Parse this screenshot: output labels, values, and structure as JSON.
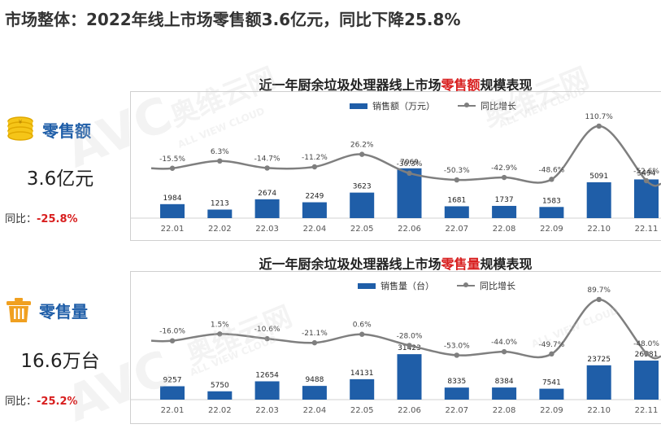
{
  "page_title": "市场整体：2022年线上市场零售额3.6亿元，同比下降25.8%",
  "kpis": [
    {
      "label": "零售额",
      "value": "3.6亿元",
      "yoy_label": "同比：",
      "yoy_value": "-25.8%",
      "icon": "coin-stack-icon"
    },
    {
      "label": "零售量",
      "value": "16.6万台",
      "yoy_label": "同比：",
      "yoy_value": "-25.2%",
      "icon": "trash-bin-icon"
    }
  ],
  "watermark": {
    "brand": "AVC",
    "cn": "奥维云网",
    "en": "ALL VIEW CLOUD"
  },
  "colors": {
    "bar": "#1f5ea8",
    "line": "#7f7f7f",
    "accent_red": "#d81e1e"
  },
  "charts": [
    {
      "title_prefix": "近一年厨余垃圾处理器线上市场",
      "title_highlight": "零售额",
      "title_suffix": "规模表现",
      "legend_bar": "销售额（万元）",
      "legend_line": "同比增长"
    },
    {
      "title_prefix": "近一年厨余垃圾处理器线上市场",
      "title_highlight": "零售量",
      "title_suffix": "规模表现",
      "legend_bar": "销售量（台）",
      "legend_line": "同比增长"
    }
  ],
  "chart_data": [
    {
      "type": "bar",
      "title": "近一年厨余垃圾处理器线上市场零售额规模表现",
      "categories": [
        "22.01",
        "22.02",
        "22.03",
        "22.04",
        "22.05",
        "22.06",
        "22.07",
        "22.08",
        "22.09",
        "22.10",
        "22.11"
      ],
      "series": [
        {
          "name": "销售额（万元）",
          "type": "bar",
          "values": [
            1984,
            1213,
            2674,
            2249,
            3623,
            7069,
            1681,
            1737,
            1583,
            5091,
            5494
          ],
          "labels": [
            "1984",
            "1213",
            "2674",
            "2249",
            "3623",
            "7069",
            "1681",
            "1737",
            "1583",
            "5091",
            "5494"
          ]
        },
        {
          "name": "同比增长",
          "type": "line",
          "values": [
            -15.5,
            6.3,
            -14.7,
            -11.2,
            26.2,
            -30.3,
            -50.3,
            -42.9,
            -48.6,
            110.7,
            -52.6
          ],
          "labels": [
            "-15.5%",
            "6.3%",
            "-14.7%",
            "-11.2%",
            "26.2%",
            "-30.3%",
            "-50.3%",
            "-42.9%",
            "-48.6%",
            "110.7%",
            "-52.6%"
          ]
        }
      ],
      "bar_ylim": [
        0,
        8200
      ],
      "line_ylim": [
        -150,
        130
      ],
      "grid": false,
      "legend_position": "top-right"
    },
    {
      "type": "bar",
      "title": "近一年厨余垃圾处理器线上市场零售量规模表现",
      "categories": [
        "22.01",
        "22.02",
        "22.03",
        "22.04",
        "22.05",
        "22.06",
        "22.07",
        "22.08",
        "22.09",
        "22.10",
        "22.11"
      ],
      "series": [
        {
          "name": "销售量（台）",
          "type": "bar",
          "values": [
            9257,
            5750,
            12654,
            9488,
            14131,
            31423,
            8335,
            8384,
            7541,
            23725,
            26981
          ],
          "labels": [
            "9257",
            "5750",
            "12654",
            "9488",
            "14131",
            "31423",
            "8335",
            "8384",
            "7541",
            "23725",
            "26981"
          ]
        },
        {
          "name": "同比增长",
          "type": "line",
          "values": [
            -16.0,
            1.5,
            -10.6,
            -21.1,
            0.6,
            -28.0,
            -53.0,
            -44.0,
            -49.7,
            89.7,
            -48.0
          ],
          "labels": [
            "-16.0%",
            "1.5%",
            "-10.6%",
            "-21.1%",
            "0.6%",
            "-28.0%",
            "-53.0%",
            "-44.0%",
            "-49.7%",
            "89.7%",
            "-48.0%"
          ]
        }
      ],
      "bar_ylim": [
        0,
        36000
      ],
      "line_ylim": [
        -150,
        100
      ],
      "grid": false,
      "legend_position": "top-right"
    }
  ]
}
